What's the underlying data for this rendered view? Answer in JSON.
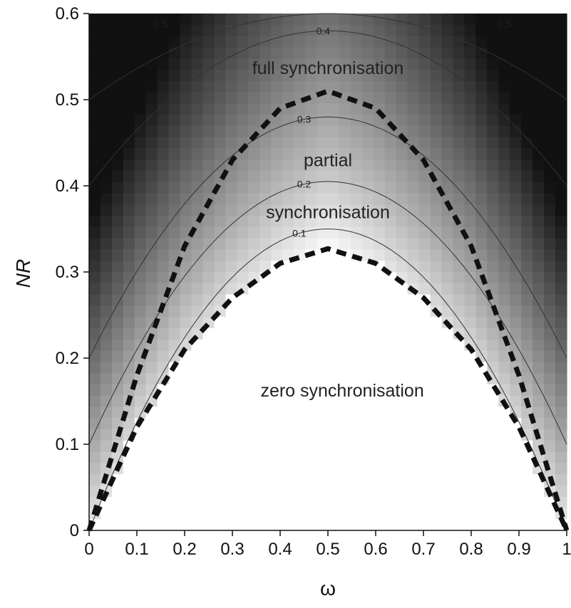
{
  "chart_data": {
    "type": "heatmap",
    "title": "",
    "xlabel": "ω",
    "ylabel": "NR",
    "xlim": [
      0,
      1
    ],
    "ylim": [
      0,
      0.6
    ],
    "x_ticks": [
      "0",
      "0.1",
      "0.2",
      "0.3",
      "0.4",
      "0.5",
      "0.6",
      "0.7",
      "0.8",
      "0.9",
      "1"
    ],
    "y_ticks": [
      "0",
      "0.1",
      "0.2",
      "0.3",
      "0.4",
      "0.5",
      "0.6"
    ],
    "grid": false,
    "colormap": {
      "low": "#ffffff",
      "high": "#111111"
    },
    "contours": [
      {
        "level": 0.1,
        "label": "0.1",
        "peak_NR": 0.35,
        "base_NR": 0.0,
        "label_x": 0.44
      },
      {
        "level": 0.2,
        "label": "0.2",
        "peak_NR": 0.405,
        "base_NR": 0.1,
        "label_x": 0.45
      },
      {
        "level": 0.3,
        "label": "0.3",
        "peak_NR": 0.48,
        "base_NR": 0.2,
        "label_x": 0.45
      },
      {
        "level": 0.4,
        "label": "0.4",
        "peak_NR": 0.58,
        "base_NR": 0.4,
        "label_x": 0.49
      },
      {
        "level": 0.5,
        "label": "0.5",
        "peak_NR": 0.6,
        "base_NR": 0.5,
        "label_x": 0.15,
        "label_x2": 0.87
      }
    ],
    "boundaries": [
      {
        "name": "full synchronisation threshold",
        "x": [
          0,
          0.1,
          0.2,
          0.3,
          0.4,
          0.5,
          0.6,
          0.7,
          0.8,
          0.9,
          1
        ],
        "y": [
          0,
          0.18,
          0.33,
          0.43,
          0.49,
          0.51,
          0.49,
          0.43,
          0.33,
          0.18,
          0
        ]
      },
      {
        "name": "zero synchronisation threshold",
        "x": [
          0,
          0.1,
          0.2,
          0.3,
          0.4,
          0.5,
          0.6,
          0.7,
          0.8,
          0.9,
          1
        ],
        "y": [
          0,
          0.12,
          0.21,
          0.27,
          0.31,
          0.327,
          0.31,
          0.27,
          0.21,
          0.12,
          0
        ]
      }
    ],
    "annotations": [
      {
        "text": "full synchronisation",
        "x": 0.5,
        "y": 0.537
      },
      {
        "text": "partial",
        "x": 0.5,
        "y": 0.43
      },
      {
        "text": "synchronisation",
        "x": 0.5,
        "y": 0.37
      },
      {
        "text": "zero synchronisation",
        "x": 0.53,
        "y": 0.163
      }
    ]
  }
}
